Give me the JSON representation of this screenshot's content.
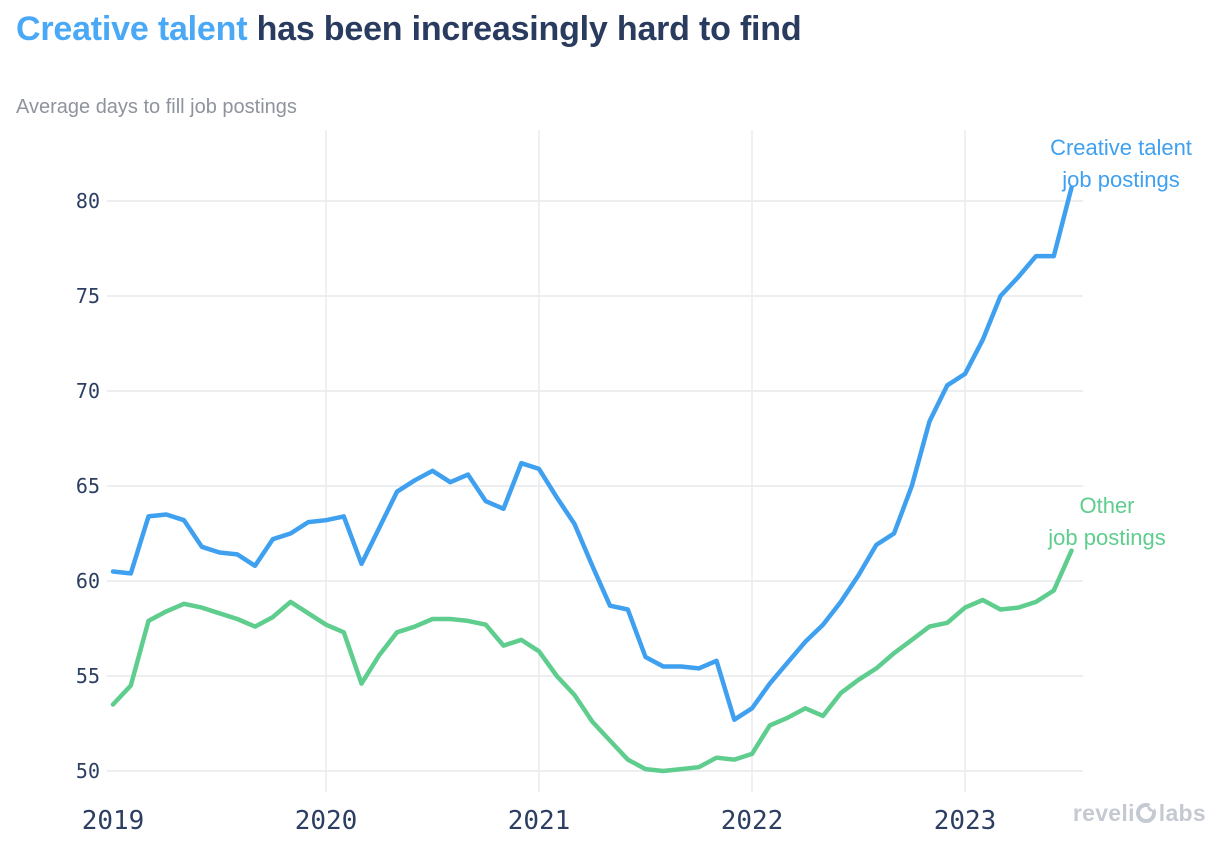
{
  "header": {
    "title_accent": "Creative talent",
    "title_rest": " has been increasingly hard to find",
    "subtitle": "Average days to fill job postings"
  },
  "footer": {
    "logo_part1": "reveli",
    "logo_part2": "labs",
    "logo_full": "revelio labs"
  },
  "colors": {
    "title_accent": "#4aa9f6",
    "title_text": "#293b5e",
    "subtitle_text": "#8e939e",
    "logo_text": "#c5c9d2"
  },
  "chart_data": {
    "type": "line",
    "title": "Creative talent has been increasingly hard to find",
    "subtitle": "Average days to fill job postings",
    "x_start": "2019-01",
    "x_end": "2023-07",
    "x_frequency": "monthly",
    "xticks": [
      "2019",
      "2020",
      "2021",
      "2022",
      "2023"
    ],
    "yticks": [
      50,
      55,
      60,
      65,
      70,
      75,
      80
    ],
    "ylim": [
      48.9,
      83.5
    ],
    "grid": true,
    "legend_position": "end-of-line labels",
    "colors": {
      "grid": "#e9ebee",
      "tick": "#2c3e61"
    },
    "series": [
      {
        "key": "creative-talent",
        "name": "Creative talent job postings",
        "label_lines": [
          "Creative talent",
          "job postings"
        ],
        "color": "#3fa0f0",
        "values": [
          60.5,
          60.4,
          63.4,
          63.5,
          63.2,
          61.8,
          61.5,
          61.4,
          60.8,
          62.2,
          62.5,
          63.1,
          63.2,
          63.4,
          60.9,
          62.8,
          64.7,
          65.3,
          65.8,
          65.2,
          65.6,
          64.2,
          63.8,
          66.2,
          65.9,
          64.4,
          63.0,
          60.8,
          58.7,
          58.5,
          56.0,
          55.5,
          55.5,
          55.4,
          55.8,
          52.7,
          53.3,
          54.6,
          55.7,
          56.8,
          57.7,
          58.9,
          60.3,
          61.9,
          62.5,
          65.0,
          68.4,
          70.3,
          70.9,
          72.7,
          75.0,
          76.0,
          77.1,
          77.1,
          80.7
        ]
      },
      {
        "key": "other",
        "name": "Other job postings",
        "label_lines": [
          "Other",
          "job postings"
        ],
        "color": "#5ecd8d",
        "values": [
          53.5,
          54.5,
          57.9,
          58.4,
          58.8,
          58.6,
          58.3,
          58.0,
          57.6,
          58.1,
          58.9,
          58.3,
          57.7,
          57.3,
          54.6,
          56.1,
          57.3,
          57.6,
          58.0,
          58.0,
          57.9,
          57.7,
          56.6,
          56.9,
          56.3,
          55.0,
          54.0,
          52.6,
          51.6,
          50.6,
          50.1,
          50.0,
          50.1,
          50.2,
          50.7,
          50.6,
          50.9,
          52.4,
          52.8,
          53.3,
          52.9,
          54.1,
          54.8,
          55.4,
          56.2,
          56.9,
          57.6,
          57.8,
          58.6,
          59.0,
          58.5,
          58.6,
          58.9,
          59.5,
          61.6
        ]
      }
    ]
  }
}
